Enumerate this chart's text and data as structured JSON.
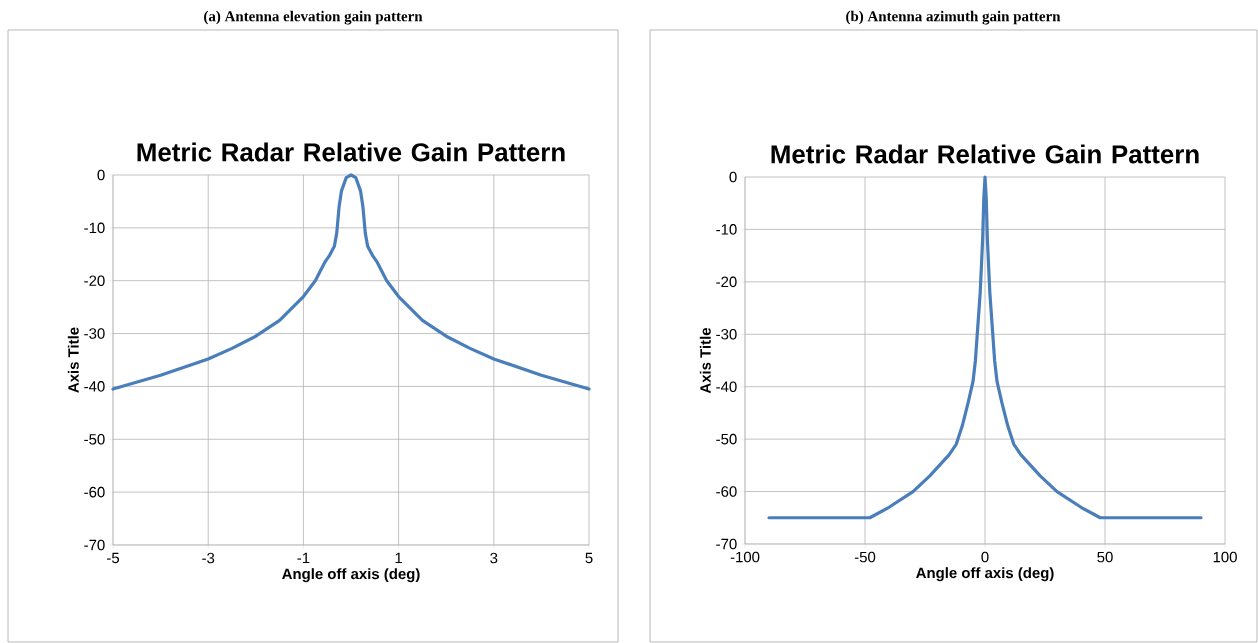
{
  "chart_data": [
    {
      "type": "line",
      "title": "Metric Radar Relative Gain Pattern",
      "xlabel": "Angle off axis (deg)",
      "ylabel": "Axis Title",
      "annotations": [
        "(a) Antenna elevation gain pattern"
      ],
      "x": [
        -5,
        -4,
        -3,
        -2.5,
        -2,
        -1.5,
        -1,
        -0.75,
        -0.55,
        -0.45,
        -0.35,
        -0.3,
        -0.25,
        -0.2,
        -0.1,
        0,
        0.1,
        0.2,
        0.25,
        0.3,
        0.35,
        0.45,
        0.55,
        0.75,
        1,
        1.5,
        2,
        2.5,
        3,
        4,
        5
      ],
      "series": [
        {
          "color": "#4a7ebb",
          "values": [
            -40.5,
            -37.9,
            -34.8,
            -32.8,
            -30.5,
            -27.5,
            -23,
            -20,
            -16.5,
            -15.2,
            -13.5,
            -11,
            -6,
            -3,
            -0.5,
            0,
            -0.5,
            -3,
            -6,
            -11,
            -13.5,
            -15.2,
            -16.5,
            -20,
            -23,
            -27.5,
            -30.5,
            -32.8,
            -34.8,
            -37.9,
            -40.5
          ]
        }
      ],
      "xlim": [
        -5,
        5
      ],
      "ylim": [
        -70,
        0
      ],
      "xticks": [
        -5,
        -3,
        -1,
        1,
        3,
        5
      ],
      "yticks": [
        -70,
        -60,
        -50,
        -40,
        -30,
        -20,
        -10,
        0
      ],
      "grid": true
    },
    {
      "type": "line",
      "title": "Metric Radar Relative Gain Pattern",
      "xlabel": "Angle off axis (deg)",
      "ylabel": "Axis Title",
      "annotations": [
        "(b) Antenna azimuth gain pattern"
      ],
      "x": [
        -90,
        -48,
        -40,
        -30,
        -23,
        -15,
        -12,
        -9.5,
        -7,
        -5,
        -4,
        -2,
        -1,
        -0.5,
        0,
        0.5,
        1,
        2,
        4,
        5,
        7,
        9.5,
        12,
        15,
        23,
        30,
        40,
        48,
        90
      ],
      "series": [
        {
          "color": "#4a7ebb",
          "values": [
            -65,
            -65,
            -63,
            -60,
            -57,
            -53,
            -51,
            -47.5,
            -43,
            -39,
            -35,
            -22,
            -12,
            -4,
            0,
            -4,
            -12,
            -22,
            -35,
            -39,
            -43,
            -47.5,
            -51,
            -53,
            -57,
            -60,
            -63,
            -65,
            -65
          ]
        }
      ],
      "xlim": [
        -100,
        100
      ],
      "ylim": [
        -70,
        0
      ],
      "xticks": [
        -100,
        -50,
        0,
        50,
        100
      ],
      "yticks": [
        -70,
        -60,
        -50,
        -40,
        -30,
        -20,
        -10,
        0
      ],
      "grid": true
    }
  ]
}
